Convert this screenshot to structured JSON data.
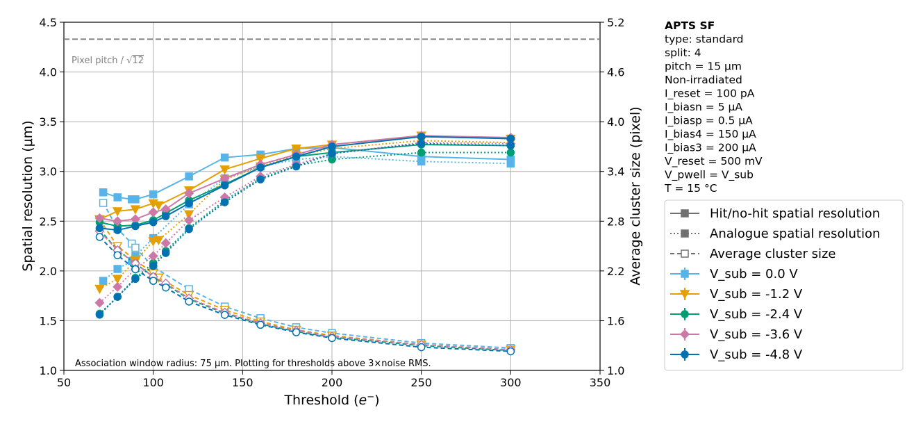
{
  "chart_data": {
    "type": "line",
    "xlabel": "Threshold (e⁻)",
    "ylabel_left": "Spatial resolution (μm)",
    "ylabel_right": "Average cluster size (pixel)",
    "xlim": [
      50,
      350
    ],
    "ylim_left": [
      1.0,
      4.5
    ],
    "ylim_right": [
      1.0,
      5.2
    ],
    "xticks": [
      "50",
      "100",
      "150",
      "200",
      "250",
      "300",
      "350"
    ],
    "yticks_left": [
      "1.0",
      "1.5",
      "2.0",
      "2.5",
      "3.0",
      "3.5",
      "4.0",
      "4.5"
    ],
    "yticks_right": [
      "1.0",
      "1.6",
      "2.2",
      "2.8",
      "3.4",
      "4.0",
      "4.6",
      "5.2"
    ],
    "grid": true,
    "reference_line": {
      "label": "Pixel pitch / √12",
      "value": 4.33,
      "color": "#808080"
    },
    "annotation": "Association window radius: 75 μm. Plotting for thresholds above 3×noise RMS.",
    "info_box": [
      "APTS SF",
      "type: standard",
      "split:  4",
      "pitch = 15 μm",
      "Non-irradiated",
      "I_reset = 100 pA",
      "I_biasn = 5 μA",
      "I_biasp = 0.5 μA",
      "I_bias4 = 150 μA",
      "I_bias3 = 200 μA",
      "V_reset = 500 mV",
      "V_pwell = V_sub",
      "T = 15 °C"
    ],
    "legend_styles": [
      {
        "label": "Hit/no-hit spatial resolution",
        "style": "solid"
      },
      {
        "label": "Analogue spatial resolution",
        "style": "dotted"
      },
      {
        "label": "Average cluster size",
        "style": "dashed"
      }
    ],
    "series": [
      {
        "name": "V_sub =  0.0 V",
        "color": "#56b4e9",
        "marker": "square",
        "hit_x": [
          72,
          80,
          88,
          90,
          100,
          120,
          140,
          160,
          180,
          200,
          250,
          300
        ],
        "hit_y": [
          2.79,
          2.74,
          2.72,
          2.72,
          2.77,
          2.95,
          3.14,
          3.17,
          3.23,
          3.24,
          3.15,
          3.12
        ],
        "ana_x": [
          72,
          80,
          88,
          90,
          100,
          120,
          140,
          160,
          180,
          200,
          250,
          300
        ],
        "ana_y": [
          1.9,
          2.02,
          2.1,
          2.15,
          2.33,
          2.67,
          2.93,
          3.05,
          3.12,
          3.15,
          3.1,
          3.08
        ],
        "cl_x": [
          72,
          80,
          88,
          90,
          100,
          120,
          140,
          160,
          180,
          200,
          250,
          300
        ],
        "cl_y": [
          3.02,
          2.71,
          2.53,
          2.48,
          2.25,
          1.98,
          1.77,
          1.63,
          1.52,
          1.45,
          1.33,
          1.27
        ]
      },
      {
        "name": "V_sub = -1.2 V",
        "color": "#e69f00",
        "marker": "triangle-down",
        "hit_x": [
          70,
          80,
          90,
          100,
          103,
          120,
          140,
          160,
          180,
          200,
          250,
          300
        ],
        "hit_y": [
          2.52,
          2.6,
          2.62,
          2.68,
          2.66,
          2.81,
          3.02,
          3.13,
          3.23,
          3.27,
          3.36,
          3.33
        ],
        "ana_x": [
          70,
          80,
          90,
          100,
          103,
          120,
          140,
          160,
          180,
          200,
          250,
          300
        ],
        "ana_y": [
          1.82,
          1.92,
          2.1,
          2.3,
          2.31,
          2.57,
          2.92,
          3.05,
          3.16,
          3.23,
          3.31,
          3.29
        ],
        "cl_x": [
          70,
          80,
          90,
          100,
          103,
          120,
          140,
          160,
          180,
          200,
          250,
          300
        ],
        "cl_y": [
          2.82,
          2.5,
          2.33,
          2.17,
          2.12,
          1.91,
          1.73,
          1.59,
          1.49,
          1.42,
          1.31,
          1.25
        ]
      },
      {
        "name": "V_sub = -2.4 V",
        "color": "#009e73",
        "marker": "circle",
        "hit_x": [
          70,
          80,
          90,
          100,
          107,
          120,
          140,
          160,
          180,
          200,
          250,
          300
        ],
        "hit_y": [
          2.49,
          2.45,
          2.46,
          2.51,
          2.58,
          2.71,
          2.87,
          3.04,
          3.15,
          3.19,
          3.27,
          3.26
        ],
        "ana_x": [
          70,
          80,
          90,
          100,
          107,
          120,
          140,
          160,
          180,
          200,
          250,
          300
        ],
        "ana_y": [
          1.57,
          1.74,
          1.93,
          2.08,
          2.2,
          2.43,
          2.71,
          2.93,
          3.06,
          3.12,
          3.19,
          3.19
        ],
        "cl_x": [
          70,
          80,
          90,
          100,
          107,
          120,
          140,
          160,
          180,
          200,
          250,
          300
        ],
        "cl_y": [
          2.7,
          2.45,
          2.29,
          2.13,
          2.04,
          1.86,
          1.69,
          1.56,
          1.47,
          1.4,
          1.3,
          1.24
        ]
      },
      {
        "name": "V_sub = -3.6 V",
        "color": "#cc79a7",
        "marker": "diamond",
        "hit_x": [
          70,
          80,
          90,
          100,
          107,
          120,
          140,
          160,
          180,
          200,
          250,
          300
        ],
        "hit_y": [
          2.53,
          2.5,
          2.52,
          2.59,
          2.62,
          2.78,
          2.93,
          3.07,
          3.17,
          3.27,
          3.36,
          3.34
        ],
        "ana_x": [
          70,
          80,
          90,
          100,
          107,
          120,
          140,
          160,
          180,
          200,
          250,
          300
        ],
        "ana_y": [
          1.68,
          1.84,
          2.02,
          2.15,
          2.28,
          2.51,
          2.74,
          2.95,
          3.07,
          3.18,
          3.29,
          3.28
        ],
        "cl_x": [
          70,
          80,
          90,
          100,
          107,
          120,
          140,
          160,
          180,
          200,
          250,
          300
        ],
        "cl_y": [
          2.68,
          2.45,
          2.29,
          2.13,
          2.05,
          1.87,
          1.7,
          1.57,
          1.48,
          1.41,
          1.31,
          1.25
        ]
      },
      {
        "name": "V_sub = -4.8 V",
        "color": "#0072b2",
        "marker": "circle",
        "hit_x": [
          70,
          80,
          90,
          100,
          107,
          120,
          140,
          160,
          180,
          200,
          250,
          300
        ],
        "hit_y": [
          2.43,
          2.41,
          2.45,
          2.49,
          2.55,
          2.68,
          2.86,
          3.04,
          3.15,
          3.25,
          3.35,
          3.33
        ],
        "ana_x": [
          70,
          80,
          90,
          100,
          107,
          120,
          140,
          160,
          180,
          200,
          250,
          300
        ],
        "ana_y": [
          1.56,
          1.74,
          1.92,
          2.05,
          2.18,
          2.42,
          2.69,
          2.92,
          3.05,
          3.18,
          3.28,
          3.26
        ],
        "cl_x": [
          70,
          80,
          90,
          100,
          107,
          120,
          140,
          160,
          180,
          200,
          250,
          300
        ],
        "cl_y": [
          2.61,
          2.39,
          2.22,
          2.08,
          2.0,
          1.83,
          1.67,
          1.55,
          1.46,
          1.39,
          1.28,
          1.23
        ]
      }
    ]
  }
}
